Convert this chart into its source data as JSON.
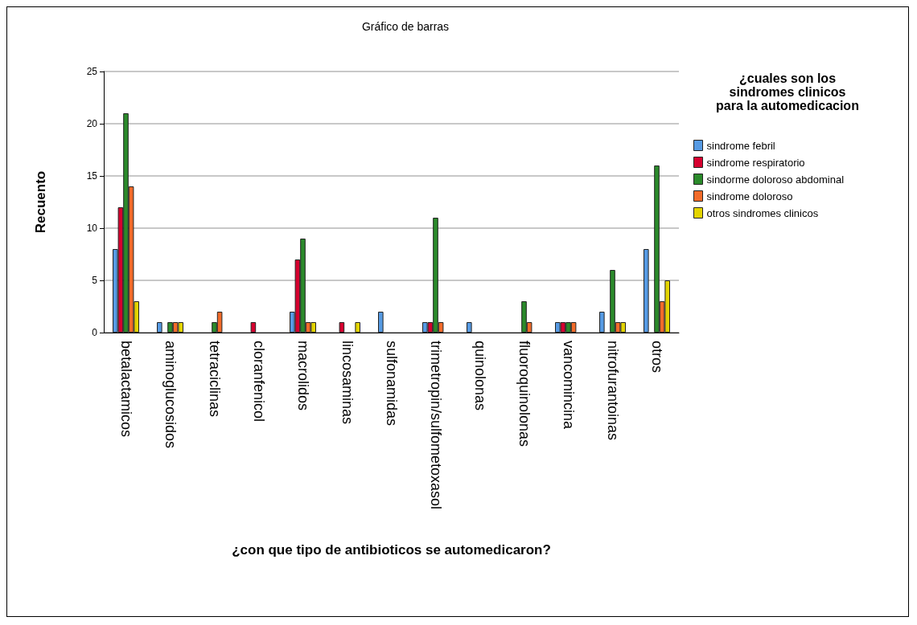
{
  "chart_data": {
    "type": "bar",
    "title": "Gráfico de barras",
    "xlabel": "¿con que tipo de antibioticos se automedicaron?",
    "ylabel": "Recuento",
    "legend_title": "¿cuales son los\nsindromes clinicos\npara la automedicacion",
    "categories": [
      "betalactamicos",
      "aminoglucosidos",
      "tetraciclinas",
      "cloranfenicol",
      "macrolidos",
      "lincosaminas",
      "sulfonamidas",
      "trimetropin/sulfometoxasol",
      "quinolonas",
      "fluoroquinolonas",
      "vancomincina",
      "nitrofurantoinas",
      "otros"
    ],
    "series": [
      {
        "name": "sindrome febril",
        "color": "#569ae3",
        "values": [
          8,
          1,
          null,
          null,
          2,
          null,
          2,
          1,
          1,
          null,
          1,
          2,
          8
        ]
      },
      {
        "name": "sindrome respiratorio",
        "color": "#d6002f",
        "values": [
          12,
          null,
          null,
          1,
          7,
          1,
          null,
          1,
          null,
          null,
          1,
          null,
          null
        ]
      },
      {
        "name": "sindorme doloroso abdominal",
        "color": "#2b8a2b",
        "values": [
          21,
          1,
          1,
          null,
          9,
          null,
          null,
          11,
          null,
          3,
          1,
          6,
          16
        ]
      },
      {
        "name": "sindrome doloroso",
        "color": "#f26b2a",
        "values": [
          14,
          1,
          2,
          null,
          1,
          null,
          null,
          1,
          null,
          1,
          1,
          1,
          3
        ]
      },
      {
        "name": "otros sindromes clinicos",
        "color": "#e3d400",
        "values": [
          3,
          1,
          null,
          null,
          1,
          1,
          null,
          null,
          null,
          null,
          null,
          1,
          5
        ]
      }
    ],
    "ylim": [
      0,
      25
    ],
    "yticks": [
      0,
      5,
      10,
      15,
      20,
      25
    ],
    "grid": "y",
    "legend": "right"
  }
}
